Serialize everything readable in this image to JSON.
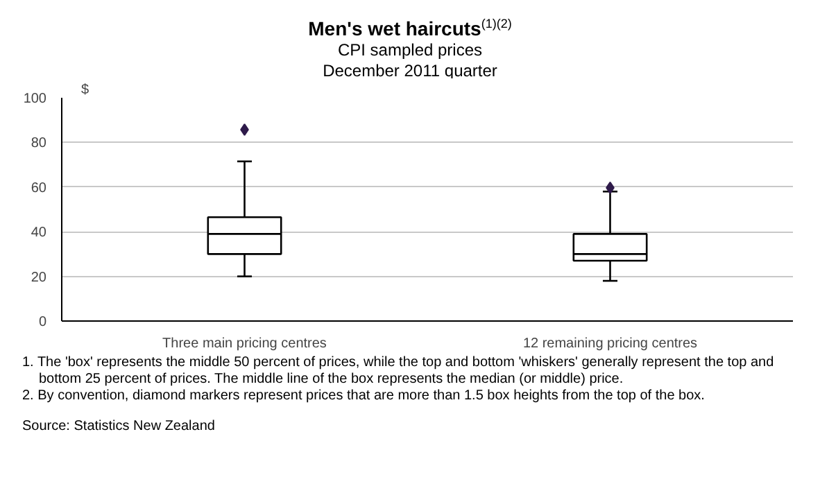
{
  "chart_data": {
    "type": "box",
    "title": "Men's wet haircuts$^{(1)(2)}$",
    "subtitle": "CPI sampled prices\nDecember 2011 quarter",
    "ylabel": "$",
    "categories": [
      "Three main pricing centres",
      "12 remaining pricing centres"
    ],
    "series": [
      {
        "color": "#000000",
        "boxes": [
          {
            "low": 20,
            "q1": 30,
            "median": 39,
            "q3": 46.5,
            "high": 71.5,
            "outliers": [
              85.7
            ]
          },
          {
            "low": 18,
            "q1": 27,
            "median": 30,
            "q3": 39,
            "high": 58,
            "outliers": [
              59.7
            ]
          }
        ]
      }
    ],
    "marker": "diamond",
    "ylim": [
      0,
      100
    ],
    "yticks": [
      0,
      20,
      40,
      60,
      80,
      100
    ],
    "grid": "y",
    "annotations": [
      "1. The 'box' represents the middle 50 percent of prices, while the top and bottom 'whiskers' generally represent the top and bottom 25 percent of prices. The middle line of the box represents the median (or middle) price.",
      "2. By convention, diamond markers represent prices that are more than 1.5 box heights from the top of the box.",
      "Source: Statistics New Zealand"
    ]
  }
}
